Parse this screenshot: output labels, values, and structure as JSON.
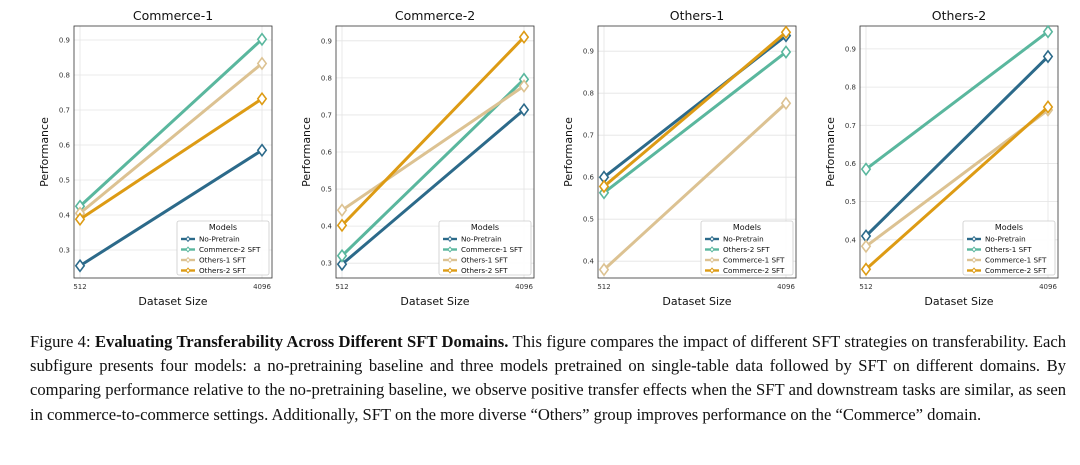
{
  "chart_data": [
    {
      "type": "line",
      "title": "Commerce-1",
      "xlabel": "Dataset Size",
      "ylabel": "Performance",
      "categories": [
        "512",
        "4096"
      ],
      "ylim": [
        0.22,
        0.94
      ],
      "yticks": [
        0.3,
        0.4,
        0.5,
        0.6,
        0.7,
        0.8,
        0.9
      ],
      "legend_title": "Models",
      "legend_position": "lower-right",
      "series": [
        {
          "name": "No-Pretrain",
          "values": [
            0.255,
            0.585
          ],
          "color": "#2c6a8a"
        },
        {
          "name": "Commerce-2 SFT",
          "values": [
            0.425,
            0.902
          ],
          "color": "#5ab79e"
        },
        {
          "name": "Others-1 SFT",
          "values": [
            0.405,
            0.833
          ],
          "color": "#dcc292"
        },
        {
          "name": "Others-2 SFT",
          "values": [
            0.388,
            0.732
          ],
          "color": "#dd9b14"
        }
      ]
    },
    {
      "type": "line",
      "title": "Commerce-2",
      "xlabel": "Dataset Size",
      "ylabel": "Performance",
      "categories": [
        "512",
        "4096"
      ],
      "ylim": [
        0.26,
        0.94
      ],
      "yticks": [
        0.3,
        0.4,
        0.5,
        0.6,
        0.7,
        0.8,
        0.9
      ],
      "legend_title": "Models",
      "legend_position": "lower-right",
      "series": [
        {
          "name": "No-Pretrain",
          "values": [
            0.297,
            0.714
          ],
          "color": "#2c6a8a"
        },
        {
          "name": "Commerce-1 SFT",
          "values": [
            0.32,
            0.796
          ],
          "color": "#5ab79e"
        },
        {
          "name": "Others-1 SFT",
          "values": [
            0.443,
            0.778
          ],
          "color": "#dcc292"
        },
        {
          "name": "Others-2 SFT",
          "values": [
            0.402,
            0.91
          ],
          "color": "#dd9b14"
        }
      ]
    },
    {
      "type": "line",
      "title": "Others-1",
      "xlabel": "Dataset Size",
      "ylabel": "Performance",
      "categories": [
        "512",
        "4096"
      ],
      "ylim": [
        0.36,
        0.96
      ],
      "yticks": [
        0.4,
        0.5,
        0.6,
        0.7,
        0.8,
        0.9
      ],
      "legend_title": "Models",
      "legend_position": "lower-right",
      "series": [
        {
          "name": "No-Pretrain",
          "values": [
            0.6,
            0.937
          ],
          "color": "#2c6a8a"
        },
        {
          "name": "Others-2 SFT",
          "values": [
            0.563,
            0.898
          ],
          "color": "#5ab79e"
        },
        {
          "name": "Commerce-1 SFT",
          "values": [
            0.38,
            0.776
          ],
          "color": "#dcc292"
        },
        {
          "name": "Commerce-2 SFT",
          "values": [
            0.578,
            0.945
          ],
          "color": "#dd9b14"
        }
      ]
    },
    {
      "type": "line",
      "title": "Others-2",
      "xlabel": "Dataset Size",
      "ylabel": "Performance",
      "categories": [
        "512",
        "4096"
      ],
      "ylim": [
        0.3,
        0.96
      ],
      "yticks": [
        0.4,
        0.5,
        0.6,
        0.7,
        0.8,
        0.9
      ],
      "legend_title": "Models",
      "legend_position": "lower-right",
      "series": [
        {
          "name": "No-Pretrain",
          "values": [
            0.41,
            0.88
          ],
          "color": "#2c6a8a"
        },
        {
          "name": "Others-1 SFT",
          "values": [
            0.585,
            0.945
          ],
          "color": "#5ab79e"
        },
        {
          "name": "Commerce-1 SFT",
          "values": [
            0.383,
            0.74
          ],
          "color": "#dcc292"
        },
        {
          "name": "Commerce-2 SFT",
          "values": [
            0.323,
            0.748
          ],
          "color": "#dd9b14"
        }
      ]
    }
  ],
  "caption": {
    "prefix": "Figure 4: ",
    "bold": "Evaluating Transferability Across Different SFT Domains.",
    "text": " This figure compares the impact of different SFT strategies on transferability. Each subfigure presents four models: a no-pretraining baseline and three models pretrained on single-table data followed by SFT on different domains. By comparing performance relative to the no-pretraining baseline, we observe positive transfer effects when the SFT and downstream tasks are similar, as seen in commerce-to-commerce settings. Additionally, SFT on the more diverse “Others” group improves performance on the “Commerce” domain."
  }
}
